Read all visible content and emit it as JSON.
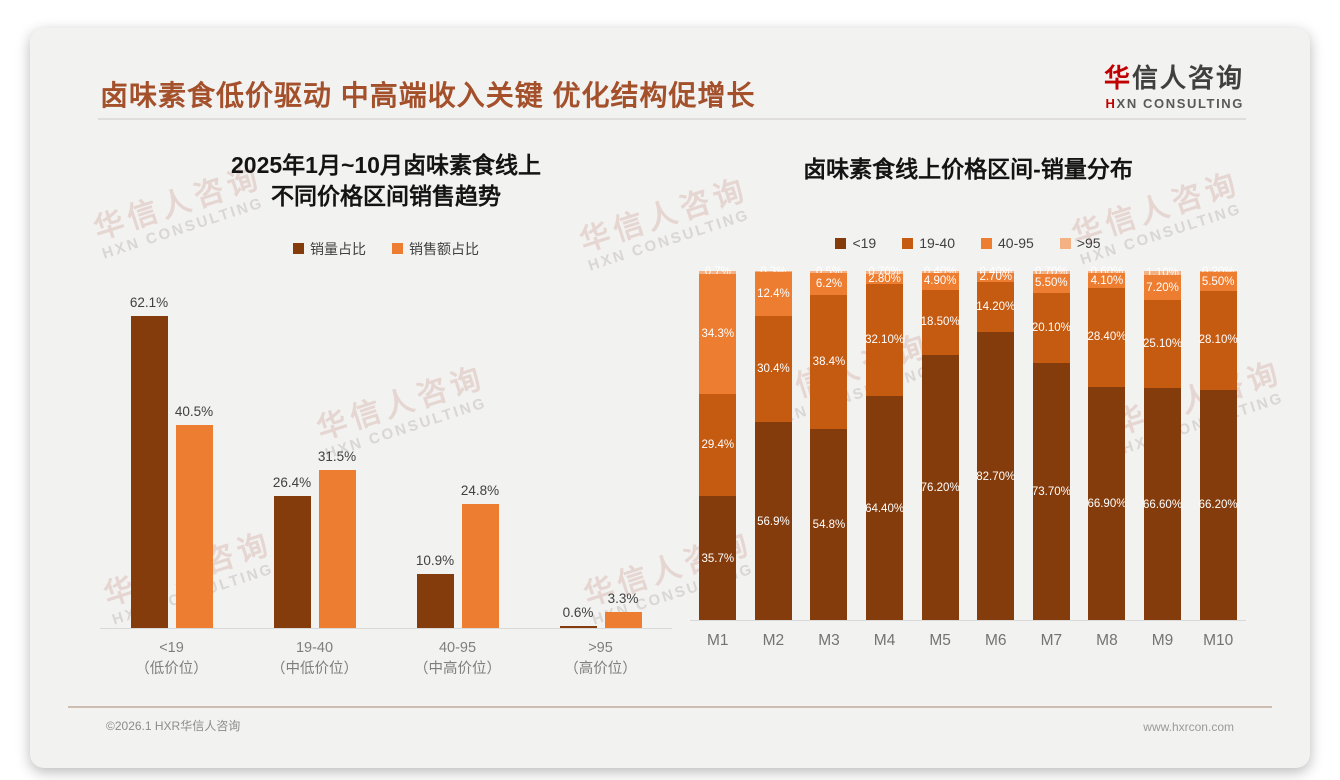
{
  "slide": {
    "title": "卤味素食低价驱动 中高端收入关键 优化结构促增长",
    "logo": {
      "accent_char1": "华",
      "name_rest": "信人咨询",
      "accent_char2": "H",
      "subtitle_rest": "XN CONSULTING"
    },
    "watermark": {
      "line1": "华信人咨询",
      "line2": "HXN CONSULTING"
    },
    "footer": {
      "left": "©2026.1 HXR华信人咨询",
      "right": "www.hxrcon.com"
    }
  },
  "colors": {
    "title_brown": "#A3502B",
    "logo_red": "#C00000",
    "series_dark_brown": "#843C0C",
    "series_mid_brown": "#C55A11",
    "series_orange": "#ED7D31",
    "series_peach": "#F4B183",
    "axis_gray": "#d9d9d9",
    "slide_bg": "#f2f2f1"
  },
  "chart_data": [
    {
      "type": "bar",
      "stacked": false,
      "title_lines": [
        "2025年1月~10月卤味素食线上",
        "不同价格区间销售趋势"
      ],
      "categories": [
        "<19",
        "19-40",
        "40-95",
        ">95"
      ],
      "categories_sub": [
        "（低价位）",
        "（中低价位）",
        "（中高价位）",
        "（高价位）"
      ],
      "ylim": [
        0,
        70
      ],
      "grid": false,
      "legend_position": "top",
      "series": [
        {
          "name": "销量占比",
          "color": "#843C0C",
          "values": [
            62.1,
            26.4,
            10.9,
            0.6
          ],
          "labels": [
            "62.1%",
            "26.4%",
            "10.9%",
            "0.6%"
          ]
        },
        {
          "name": "销售额占比",
          "color": "#ED7D31",
          "values": [
            40.5,
            31.5,
            24.8,
            3.3
          ],
          "labels": [
            "40.5%",
            "31.5%",
            "24.8%",
            "3.3%"
          ]
        }
      ]
    },
    {
      "type": "bar",
      "stacked": true,
      "title": "卤味素食线上价格区间-销量分布",
      "categories": [
        "M1",
        "M2",
        "M3",
        "M4",
        "M5",
        "M6",
        "M7",
        "M8",
        "M9",
        "M10"
      ],
      "ylim": [
        0,
        100
      ],
      "grid": false,
      "legend_position": "top",
      "series": [
        {
          "name": "<19",
          "color": "#843C0C",
          "values": [
            35.7,
            56.9,
            54.8,
            64.4,
            76.2,
            82.7,
            73.7,
            66.9,
            66.6,
            66.2
          ],
          "labels": [
            "35.7%",
            "56.9%",
            "54.8%",
            "64.40%",
            "76.20%",
            "82.70%",
            "73.70%",
            "66.90%",
            "66.60%",
            "66.20%"
          ]
        },
        {
          "name": "19-40",
          "color": "#C55A11",
          "values": [
            29.4,
            30.4,
            38.4,
            32.1,
            18.5,
            14.2,
            20.1,
            28.4,
            25.1,
            28.1
          ],
          "labels": [
            "29.4%",
            "30.4%",
            "38.4%",
            "32.10%",
            "18.50%",
            "14.20%",
            "20.10%",
            "28.40%",
            "25.10%",
            "28.10%"
          ]
        },
        {
          "name": "40-95",
          "color": "#ED7D31",
          "values": [
            34.3,
            12.4,
            6.2,
            2.8,
            4.9,
            2.7,
            5.5,
            4.1,
            7.2,
            5.5
          ],
          "labels": [
            "34.3%",
            "12.4%",
            "6.2%",
            "2.80%",
            "4.90%",
            "2.70%",
            "5.50%",
            "4.10%",
            "7.20%",
            "5.50%"
          ]
        },
        {
          "name": ">95",
          "color": "#F4B183",
          "values": [
            0.7,
            0.3,
            0.5,
            0.7,
            0.4,
            0.4,
            0.7,
            0.6,
            1.1,
            0.2
          ],
          "labels": [
            "0.7%",
            "0.3%",
            "0.5%",
            "0.70%",
            "0.40%",
            "0.40%",
            "0.70%",
            "0.60%",
            "1.10%",
            "0.20%"
          ]
        }
      ]
    }
  ]
}
